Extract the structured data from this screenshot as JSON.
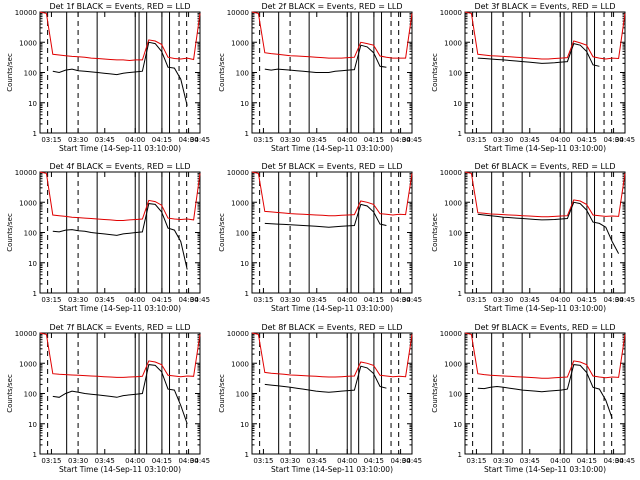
{
  "chart_data": [
    {
      "type": "line",
      "title": "Det 1f  BLACK = Events, RED = LLD",
      "xlabel": "Start Time (14-Sep-11 03:10:00)",
      "ylabel": "Counts/sec",
      "yscale": "log",
      "ylim": [
        1,
        10000
      ],
      "xlim": [
        0,
        42
      ],
      "x_ticks": [
        "03:15",
        "03:30",
        "03:45",
        "04:00",
        "04:15",
        "04:30",
        "04:45"
      ],
      "y_ticks": [
        "1",
        "10",
        "100",
        "1000",
        "10000"
      ],
      "series": [
        {
          "name": "LLD",
          "color": "#e00000",
          "values": [
            10000,
            9000,
            400,
            380,
            360,
            340,
            330,
            320,
            300,
            290,
            280,
            270,
            260,
            260,
            250,
            260,
            260,
            1200,
            1100,
            850,
            320,
            290,
            280,
            300,
            270,
            9000
          ]
        },
        {
          "name": "Events",
          "color": "#000000",
          "values": [
            null,
            null,
            110,
            100,
            120,
            130,
            115,
            110,
            105,
            100,
            95,
            90,
            85,
            95,
            100,
            105,
            110,
            1000,
            900,
            500,
            150,
            140,
            60,
            8,
            null,
            null
          ]
        }
      ],
      "vlines": {
        "dashed": [
          2,
          10,
          36.5,
          38.5
        ],
        "solid": [
          7,
          15,
          25,
          26,
          28,
          32,
          34
        ]
      }
    },
    {
      "type": "line",
      "title": "Det 2f  BLACK = Events, RED = LLD",
      "xlabel": "Start Time (14-Sep-11 03:10:00)",
      "ylabel": "Counts/sec",
      "yscale": "log",
      "ylim": [
        1,
        10000
      ],
      "xlim": [
        0,
        42
      ],
      "x_ticks": [
        "03:15",
        "03:30",
        "03:45",
        "04:00",
        "04:15",
        "04:30",
        "04:45"
      ],
      "y_ticks": [
        "1",
        "10",
        "100",
        "1000",
        "10000"
      ],
      "series": [
        {
          "name": "LLD",
          "color": "#e00000",
          "values": [
            10000,
            9000,
            450,
            420,
            400,
            380,
            360,
            350,
            340,
            330,
            320,
            310,
            300,
            300,
            300,
            310,
            320,
            1000,
            900,
            800,
            350,
            320,
            300,
            300,
            300,
            9000
          ]
        },
        {
          "name": "Events",
          "color": "#000000",
          "values": [
            null,
            null,
            130,
            120,
            130,
            125,
            120,
            115,
            110,
            105,
            100,
            100,
            100,
            110,
            115,
            120,
            125,
            800,
            700,
            450,
            160,
            150,
            null,
            null,
            null,
            null
          ]
        }
      ],
      "vlines": {
        "dashed": [
          2,
          10,
          36.5,
          38.5
        ],
        "solid": [
          7,
          15,
          25,
          26,
          28,
          32,
          34
        ]
      }
    },
    {
      "type": "line",
      "title": "Det 3f  BLACK = Events, RED = LLD",
      "xlabel": "Start Time (14-Sep-11 03:10:00)",
      "ylabel": "Counts/sec",
      "yscale": "log",
      "ylim": [
        1,
        10000
      ],
      "xlim": [
        0,
        42
      ],
      "x_ticks": [
        "03:15",
        "03:30",
        "03:45",
        "04:00",
        "04:15",
        "04:30",
        "04:45"
      ],
      "y_ticks": [
        "1",
        "10",
        "100",
        "1000",
        "10000"
      ],
      "series": [
        {
          "name": "LLD",
          "color": "#e00000",
          "values": [
            10000,
            9000,
            400,
            380,
            360,
            350,
            340,
            330,
            320,
            310,
            300,
            290,
            280,
            280,
            290,
            300,
            310,
            1100,
            950,
            800,
            330,
            300,
            280,
            300,
            290,
            9000
          ]
        },
        {
          "name": "Events",
          "color": "#000000",
          "values": [
            null,
            null,
            300,
            290,
            280,
            270,
            260,
            250,
            240,
            230,
            220,
            210,
            200,
            205,
            210,
            220,
            230,
            900,
            800,
            500,
            180,
            160,
            null,
            null,
            null,
            null
          ]
        }
      ],
      "vlines": {
        "dashed": [
          2,
          10,
          36.5,
          38.5
        ],
        "solid": [
          7,
          15,
          25,
          26,
          28,
          32,
          34
        ]
      }
    },
    {
      "type": "line",
      "title": "Det 4f  BLACK = Events, RED = LLD",
      "xlabel": "Start Time (14-Sep-11 03:10:00)",
      "ylabel": "Counts/sec",
      "yscale": "log",
      "ylim": [
        1,
        10000
      ],
      "xlim": [
        0,
        42
      ],
      "x_ticks": [
        "03:15",
        "03:30",
        "03:45",
        "04:00",
        "04:15",
        "04:30",
        "04:45"
      ],
      "y_ticks": [
        "1",
        "10",
        "100",
        "1000",
        "10000"
      ],
      "series": [
        {
          "name": "LLD",
          "color": "#e00000",
          "values": [
            10000,
            9000,
            380,
            360,
            340,
            320,
            310,
            300,
            290,
            280,
            270,
            260,
            250,
            250,
            260,
            270,
            280,
            1150,
            1050,
            800,
            300,
            280,
            270,
            280,
            260,
            9000
          ]
        },
        {
          "name": "Events",
          "color": "#000000",
          "values": [
            null,
            null,
            110,
            105,
            120,
            125,
            115,
            110,
            100,
            95,
            90,
            85,
            80,
            90,
            95,
            100,
            105,
            900,
            850,
            480,
            140,
            120,
            50,
            6,
            null,
            null
          ]
        }
      ],
      "vlines": {
        "dashed": [
          2,
          10,
          36.5,
          38.5
        ],
        "solid": [
          7,
          15,
          25,
          26,
          28,
          32,
          34
        ]
      }
    },
    {
      "type": "line",
      "title": "Det 5f  BLACK = Events, RED = LLD",
      "xlabel": "Start Time (14-Sep-11 03:10:00)",
      "ylabel": "Counts/sec",
      "yscale": "log",
      "ylim": [
        1,
        10000
      ],
      "xlim": [
        0,
        42
      ],
      "x_ticks": [
        "03:15",
        "03:30",
        "03:45",
        "04:00",
        "04:15",
        "04:30",
        "04:45"
      ],
      "y_ticks": [
        "1",
        "10",
        "100",
        "1000",
        "10000"
      ],
      "series": [
        {
          "name": "LLD",
          "color": "#e00000",
          "values": [
            10000,
            9000,
            500,
            480,
            460,
            440,
            420,
            410,
            400,
            390,
            380,
            370,
            360,
            360,
            370,
            380,
            390,
            1100,
            1000,
            850,
            420,
            400,
            380,
            400,
            390,
            9000
          ]
        },
        {
          "name": "Events",
          "color": "#000000",
          "values": [
            null,
            null,
            200,
            195,
            190,
            185,
            180,
            175,
            170,
            165,
            160,
            155,
            150,
            155,
            160,
            165,
            170,
            850,
            750,
            480,
            190,
            170,
            null,
            null,
            null,
            null
          ]
        }
      ],
      "vlines": {
        "dashed": [
          2,
          10,
          36.5,
          38.5
        ],
        "solid": [
          7,
          15,
          25,
          26,
          28,
          32,
          34
        ]
      }
    },
    {
      "type": "line",
      "title": "Det 6f  BLACK = Events, RED = LLD",
      "xlabel": "Start Time (14-Sep-11 03:10:00)",
      "ylabel": "Counts/sec",
      "yscale": "log",
      "ylim": [
        1,
        10000
      ],
      "xlim": [
        0,
        42
      ],
      "x_ticks": [
        "03:15",
        "03:30",
        "03:45",
        "04:00",
        "04:15",
        "04:30",
        "04:45"
      ],
      "y_ticks": [
        "1",
        "10",
        "100",
        "1000",
        "10000"
      ],
      "series": [
        {
          "name": "LLD",
          "color": "#e00000",
          "values": [
            10000,
            9000,
            450,
            430,
            410,
            400,
            390,
            380,
            370,
            360,
            350,
            340,
            330,
            330,
            340,
            350,
            360,
            1200,
            1100,
            850,
            380,
            360,
            340,
            350,
            340,
            9000
          ]
        },
        {
          "name": "Events",
          "color": "#000000",
          "values": [
            null,
            null,
            400,
            380,
            360,
            340,
            320,
            310,
            300,
            290,
            280,
            270,
            260,
            265,
            270,
            280,
            290,
            1000,
            900,
            550,
            220,
            200,
            150,
            50,
            20,
            null
          ]
        }
      ],
      "vlines": {
        "dashed": [
          2,
          10,
          36.5,
          38.5
        ],
        "solid": [
          7,
          15,
          25,
          26,
          28,
          32,
          34
        ]
      }
    },
    {
      "type": "line",
      "title": "Det 7f  BLACK = Events, RED = LLD",
      "xlabel": "Start Time (14-Sep-11 03:10:00)",
      "ylabel": "Counts/sec",
      "yscale": "log",
      "ylim": [
        1,
        10000
      ],
      "xlim": [
        0,
        42
      ],
      "x_ticks": [
        "03:15",
        "03:30",
        "03:45",
        "04:00",
        "04:15",
        "04:30",
        "04:45"
      ],
      "y_ticks": [
        "1",
        "10",
        "100",
        "1000",
        "10000"
      ],
      "series": [
        {
          "name": "LLD",
          "color": "#e00000",
          "values": [
            10000,
            9000,
            450,
            430,
            420,
            410,
            400,
            390,
            380,
            370,
            360,
            350,
            340,
            340,
            350,
            360,
            370,
            1200,
            1100,
            900,
            400,
            380,
            360,
            380,
            370,
            9000
          ]
        },
        {
          "name": "Events",
          "color": "#000000",
          "values": [
            null,
            null,
            80,
            75,
            100,
            120,
            110,
            100,
            95,
            90,
            85,
            80,
            75,
            85,
            90,
            95,
            100,
            900,
            850,
            520,
            140,
            130,
            40,
            10,
            null,
            null
          ]
        }
      ],
      "vlines": {
        "dashed": [
          2,
          10,
          36.5,
          38.5
        ],
        "solid": [
          7,
          15,
          25,
          26,
          28,
          32,
          34
        ]
      }
    },
    {
      "type": "line",
      "title": "Det 8f  BLACK = Events, RED = LLD",
      "xlabel": "Start Time (14-Sep-11 03:10:00)",
      "ylabel": "Counts/sec",
      "yscale": "log",
      "ylim": [
        1,
        10000
      ],
      "xlim": [
        0,
        42
      ],
      "x_ticks": [
        "03:15",
        "03:30",
        "03:45",
        "04:00",
        "04:15",
        "04:30",
        "04:45"
      ],
      "y_ticks": [
        "1",
        "10",
        "100",
        "1000",
        "10000"
      ],
      "series": [
        {
          "name": "LLD",
          "color": "#e00000",
          "values": [
            10000,
            9000,
            500,
            470,
            450,
            430,
            410,
            400,
            390,
            380,
            370,
            360,
            350,
            350,
            360,
            370,
            380,
            1100,
            1000,
            850,
            400,
            380,
            360,
            370,
            360,
            9000
          ]
        },
        {
          "name": "Events",
          "color": "#000000",
          "values": [
            null,
            null,
            200,
            190,
            180,
            170,
            160,
            150,
            140,
            130,
            120,
            115,
            110,
            115,
            120,
            125,
            130,
            800,
            700,
            460,
            170,
            150,
            null,
            null,
            null,
            null
          ]
        }
      ],
      "vlines": {
        "dashed": [
          2,
          10,
          36.5,
          38.5
        ],
        "solid": [
          7,
          15,
          25,
          26,
          28,
          32,
          34
        ]
      }
    },
    {
      "type": "line",
      "title": "Det 9f  BLACK = Events, RED = LLD",
      "xlabel": "Start Time (14-Sep-11 03:10:00)",
      "ylabel": "Counts/sec",
      "yscale": "log",
      "ylim": [
        1,
        10000
      ],
      "xlim": [
        0,
        42
      ],
      "x_ticks": [
        "03:15",
        "03:30",
        "03:45",
        "04:00",
        "04:15",
        "04:30",
        "04:45"
      ],
      "y_ticks": [
        "1",
        "10",
        "100",
        "1000",
        "10000"
      ],
      "series": [
        {
          "name": "LLD",
          "color": "#e00000",
          "values": [
            10000,
            9000,
            450,
            420,
            400,
            390,
            380,
            370,
            360,
            350,
            340,
            330,
            320,
            320,
            330,
            340,
            350,
            1200,
            1100,
            900,
            380,
            350,
            330,
            350,
            340,
            9000
          ]
        },
        {
          "name": "Events",
          "color": "#000000",
          "values": [
            null,
            null,
            150,
            145,
            160,
            170,
            160,
            150,
            140,
            130,
            125,
            120,
            115,
            120,
            125,
            130,
            140,
            900,
            850,
            500,
            160,
            140,
            60,
            15,
            null,
            null
          ]
        }
      ],
      "vlines": {
        "dashed": [
          2,
          10,
          36.5,
          38.5
        ],
        "solid": [
          7,
          15,
          25,
          26,
          28,
          32,
          34
        ]
      }
    }
  ]
}
